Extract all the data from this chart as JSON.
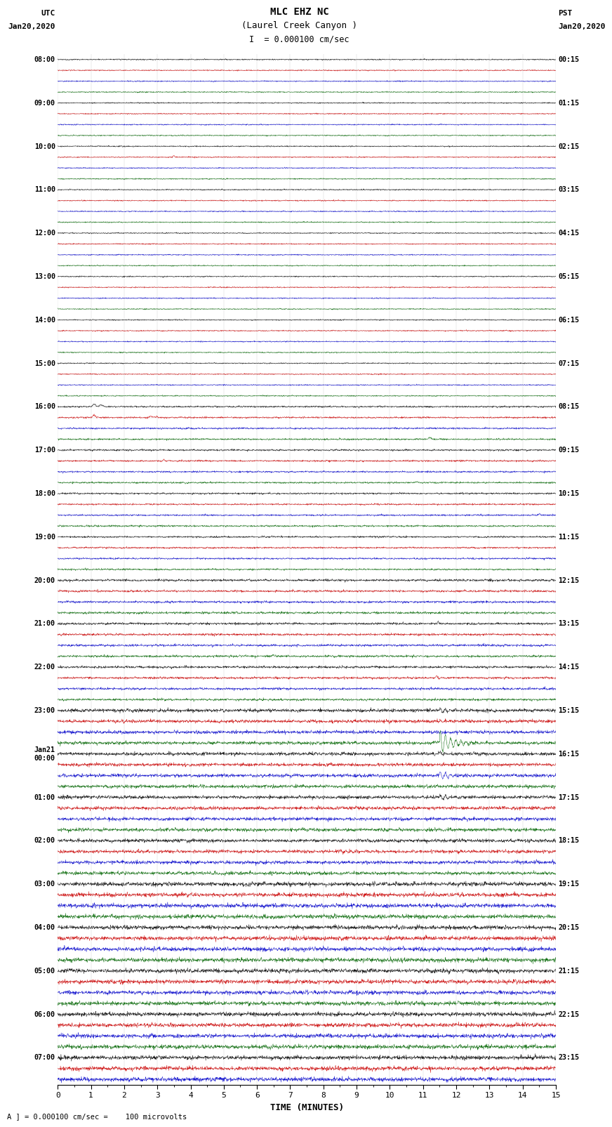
{
  "title_line1": "MLC EHZ NC",
  "title_line2": "(Laurel Creek Canyon )",
  "title_line3": "I  = 0.000100 cm/sec",
  "left_header1": "UTC",
  "left_header2": "Jan20,2020",
  "right_header1": "PST",
  "right_header2": "Jan20,2020",
  "xlabel": "TIME (MINUTES)",
  "footer": "A ] = 0.000100 cm/sec =    100 microvolts",
  "xlim": [
    0,
    15
  ],
  "xticks": [
    0,
    1,
    2,
    3,
    4,
    5,
    6,
    7,
    8,
    9,
    10,
    11,
    12,
    13,
    14,
    15
  ],
  "background_color": "#ffffff",
  "grid_color": "#777777",
  "trace_colors": [
    "#000000",
    "#cc0000",
    "#0000cc",
    "#006600"
  ],
  "utc_labels": [
    "08:00",
    "",
    "",
    "",
    "09:00",
    "",
    "",
    "",
    "10:00",
    "",
    "",
    "",
    "11:00",
    "",
    "",
    "",
    "12:00",
    "",
    "",
    "",
    "13:00",
    "",
    "",
    "",
    "14:00",
    "",
    "",
    "",
    "15:00",
    "",
    "",
    "",
    "16:00",
    "",
    "",
    "",
    "17:00",
    "",
    "",
    "",
    "18:00",
    "",
    "",
    "",
    "19:00",
    "",
    "",
    "",
    "20:00",
    "",
    "",
    "",
    "21:00",
    "",
    "",
    "",
    "22:00",
    "",
    "",
    "",
    "23:00",
    "",
    "",
    "",
    "Jan21\n00:00",
    "",
    "",
    "",
    "01:00",
    "",
    "",
    "",
    "02:00",
    "",
    "",
    "",
    "03:00",
    "",
    "",
    "",
    "04:00",
    "",
    "",
    "",
    "05:00",
    "",
    "",
    "",
    "06:00",
    "",
    "",
    "",
    "07:00",
    "",
    ""
  ],
  "pst_labels": [
    "00:15",
    "",
    "",
    "",
    "01:15",
    "",
    "",
    "",
    "02:15",
    "",
    "",
    "",
    "03:15",
    "",
    "",
    "",
    "04:15",
    "",
    "",
    "",
    "05:15",
    "",
    "",
    "",
    "06:15",
    "",
    "",
    "",
    "07:15",
    "",
    "",
    "",
    "08:15",
    "",
    "",
    "",
    "09:15",
    "",
    "",
    "",
    "10:15",
    "",
    "",
    "",
    "11:15",
    "",
    "",
    "",
    "12:15",
    "",
    "",
    "",
    "13:15",
    "",
    "",
    "",
    "14:15",
    "",
    "",
    "",
    "15:15",
    "",
    "",
    "",
    "16:15",
    "",
    "",
    "",
    "17:15",
    "",
    "",
    "",
    "18:15",
    "",
    "",
    "",
    "19:15",
    "",
    "",
    "",
    "20:15",
    "",
    "",
    "",
    "21:15",
    "",
    "",
    "",
    "22:15",
    "",
    "",
    "",
    "23:15",
    "",
    ""
  ],
  "num_traces": 95,
  "samples_per_trace": 2000,
  "trace_noise_base": 0.12,
  "minutes": 15
}
